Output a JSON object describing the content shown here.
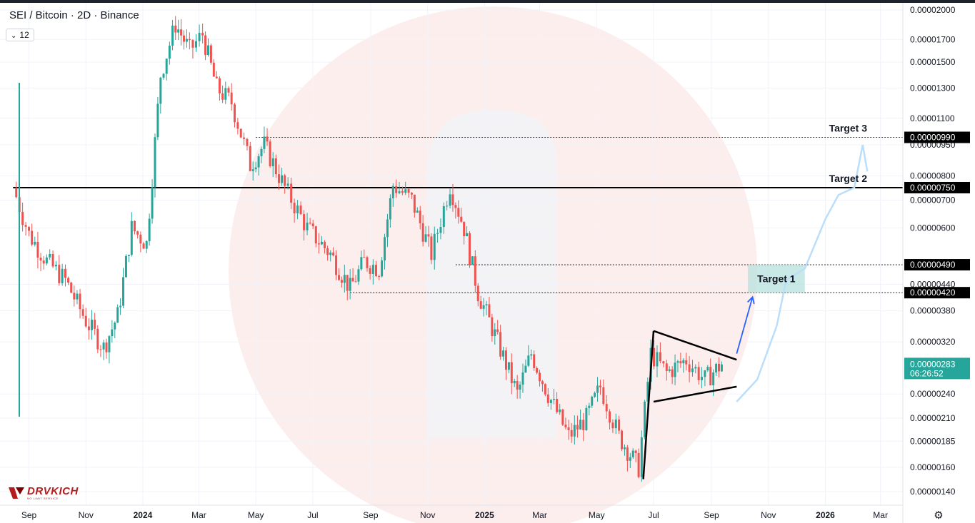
{
  "header": {
    "title": "SEI / Bitcoin · 2D · Binance",
    "interval_badge": "12"
  },
  "brand": {
    "name": "DRVKICH",
    "tagline": "NO LIMIT SERVICE"
  },
  "colors": {
    "up": "#26a69a",
    "down": "#ef5350",
    "level_line": "#000000",
    "last_price_badge": "#26a69a",
    "target_zone": "#b2dfdb",
    "arrow": "#2962ff",
    "projection": "#bbdefb"
  },
  "chart_data": {
    "type": "candlestick",
    "title": "SEI / Bitcoin · 2D · Binance",
    "y_scale": "log",
    "ylim": [
      1.32e-06,
      2e-05
    ],
    "x_tick_labels": [
      "Sep",
      "Nov",
      "2024",
      "Mar",
      "May",
      "Jul",
      "Sep",
      "Nov",
      "2025",
      "Mar",
      "May",
      "Jul",
      "Sep",
      "Nov",
      "2026",
      "Mar"
    ],
    "y_tick_labels": [
      "0.00002000",
      "0.00001700",
      "0.00001500",
      "0.00001300",
      "0.00001100",
      "0.00000950",
      "0.00000800",
      "0.00000700",
      "0.00000600",
      "0.00000440",
      "0.00000380",
      "0.00000320",
      "0.00000240",
      "0.00000210",
      "0.00000185",
      "0.00000160",
      "0.00000140"
    ],
    "price_path": [
      {
        "x": "2023-08-15",
        "y": 7.5e-06
      },
      {
        "x": "2023-09-01",
        "y": 5.8e-06
      },
      {
        "x": "2023-09-20",
        "y": 5e-06
      },
      {
        "x": "2023-10-10",
        "y": 4.5e-06
      },
      {
        "x": "2023-11-01",
        "y": 3.6e-06
      },
      {
        "x": "2023-11-20",
        "y": 3.1e-06
      },
      {
        "x": "2023-12-05",
        "y": 3.7e-06
      },
      {
        "x": "2023-12-20",
        "y": 6e-06
      },
      {
        "x": "2024-01-05",
        "y": 5.5e-06
      },
      {
        "x": "2024-01-20",
        "y": 1.4e-05
      },
      {
        "x": "2024-02-05",
        "y": 1.85e-05
      },
      {
        "x": "2024-02-20",
        "y": 1.6e-05
      },
      {
        "x": "2024-03-05",
        "y": 1.75e-05
      },
      {
        "x": "2024-03-20",
        "y": 1.3e-05
      },
      {
        "x": "2024-04-05",
        "y": 1.2e-05
      },
      {
        "x": "2024-04-25",
        "y": 8.5e-06
      },
      {
        "x": "2024-05-10",
        "y": 9.5e-06
      },
      {
        "x": "2024-06-01",
        "y": 7.5e-06
      },
      {
        "x": "2024-06-25",
        "y": 6e-06
      },
      {
        "x": "2024-07-20",
        "y": 5.2e-06
      },
      {
        "x": "2024-08-10",
        "y": 4.3e-06
      },
      {
        "x": "2024-08-25",
        "y": 5e-06
      },
      {
        "x": "2024-09-10",
        "y": 4.8e-06
      },
      {
        "x": "2024-09-25",
        "y": 7.6e-06
      },
      {
        "x": "2024-10-15",
        "y": 7e-06
      },
      {
        "x": "2024-11-05",
        "y": 5.2e-06
      },
      {
        "x": "2024-11-25",
        "y": 7.6e-06
      },
      {
        "x": "2024-12-10",
        "y": 6e-06
      },
      {
        "x": "2024-12-25",
        "y": 4.2e-06
      },
      {
        "x": "2025-01-15",
        "y": 3.2e-06
      },
      {
        "x": "2025-02-05",
        "y": 2.4e-06
      },
      {
        "x": "2025-02-20",
        "y": 3e-06
      },
      {
        "x": "2025-03-10",
        "y": 2.4e-06
      },
      {
        "x": "2025-04-01",
        "y": 1.9e-06
      },
      {
        "x": "2025-04-20",
        "y": 2.1e-06
      },
      {
        "x": "2025-05-05",
        "y": 2.5e-06
      },
      {
        "x": "2025-05-25",
        "y": 1.9e-06
      },
      {
        "x": "2025-06-15",
        "y": 1.6e-06
      },
      {
        "x": "2025-06-28",
        "y": 3e-06
      },
      {
        "x": "2025-07-15",
        "y": 2.7e-06
      },
      {
        "x": "2025-08-05",
        "y": 2.9e-06
      },
      {
        "x": "2025-08-25",
        "y": 2.6e-06
      },
      {
        "x": "2025-09-12",
        "y": 2.83e-06
      }
    ],
    "levels": [
      {
        "price": 9.9e-06,
        "label": "0.00000990",
        "annotation": "Target 3",
        "style": "dotted"
      },
      {
        "price": 7.5e-06,
        "label": "0.00000750",
        "annotation": "Target 2",
        "style": "solid"
      },
      {
        "price": 4.9e-06,
        "label": "0.00000490",
        "annotation": "",
        "style": "dotted"
      },
      {
        "price": 4.2e-06,
        "label": "0.00000420",
        "annotation": "",
        "style": "dotted"
      }
    ],
    "target_zone": {
      "label": "Target 1",
      "top": 4.9e-06,
      "bottom": 4.2e-06,
      "from": "2025-10-10",
      "to": "2025-12-10"
    },
    "last_price": {
      "value": "0.00000283",
      "countdown": "06:26:52"
    },
    "pattern": {
      "type": "pennant",
      "pole": [
        {
          "x": "2025-06-20",
          "y": 1.5e-06
        },
        {
          "x": "2025-07-01",
          "y": 3.4e-06
        }
      ],
      "upper": [
        {
          "x": "2025-07-01",
          "y": 3.4e-06
        },
        {
          "x": "2025-09-28",
          "y": 2.9e-06
        }
      ],
      "lower": [
        {
          "x": "2025-07-01",
          "y": 2.3e-06
        },
        {
          "x": "2025-09-28",
          "y": 2.5e-06
        }
      ],
      "breakout_arrow": [
        {
          "x": "2025-09-28",
          "y": 3e-06
        },
        {
          "x": "2025-10-15",
          "y": 4.1e-06
        }
      ]
    },
    "projection_path": [
      {
        "x": "2025-09-28",
        "y": 2.3e-06
      },
      {
        "x": "2025-10-20",
        "y": 2.6e-06
      },
      {
        "x": "2025-11-10",
        "y": 3.5e-06
      },
      {
        "x": "2025-11-20",
        "y": 4.5e-06
      },
      {
        "x": "2025-12-10",
        "y": 4.8e-06
      },
      {
        "x": "2026-01-01",
        "y": 6.3e-06
      },
      {
        "x": "2026-01-15",
        "y": 7.2e-06
      },
      {
        "x": "2026-02-01",
        "y": 7.5e-06
      },
      {
        "x": "2026-02-10",
        "y": 9.5e-06
      },
      {
        "x": "2026-02-15",
        "y": 8.2e-06
      }
    ],
    "grid": true
  }
}
